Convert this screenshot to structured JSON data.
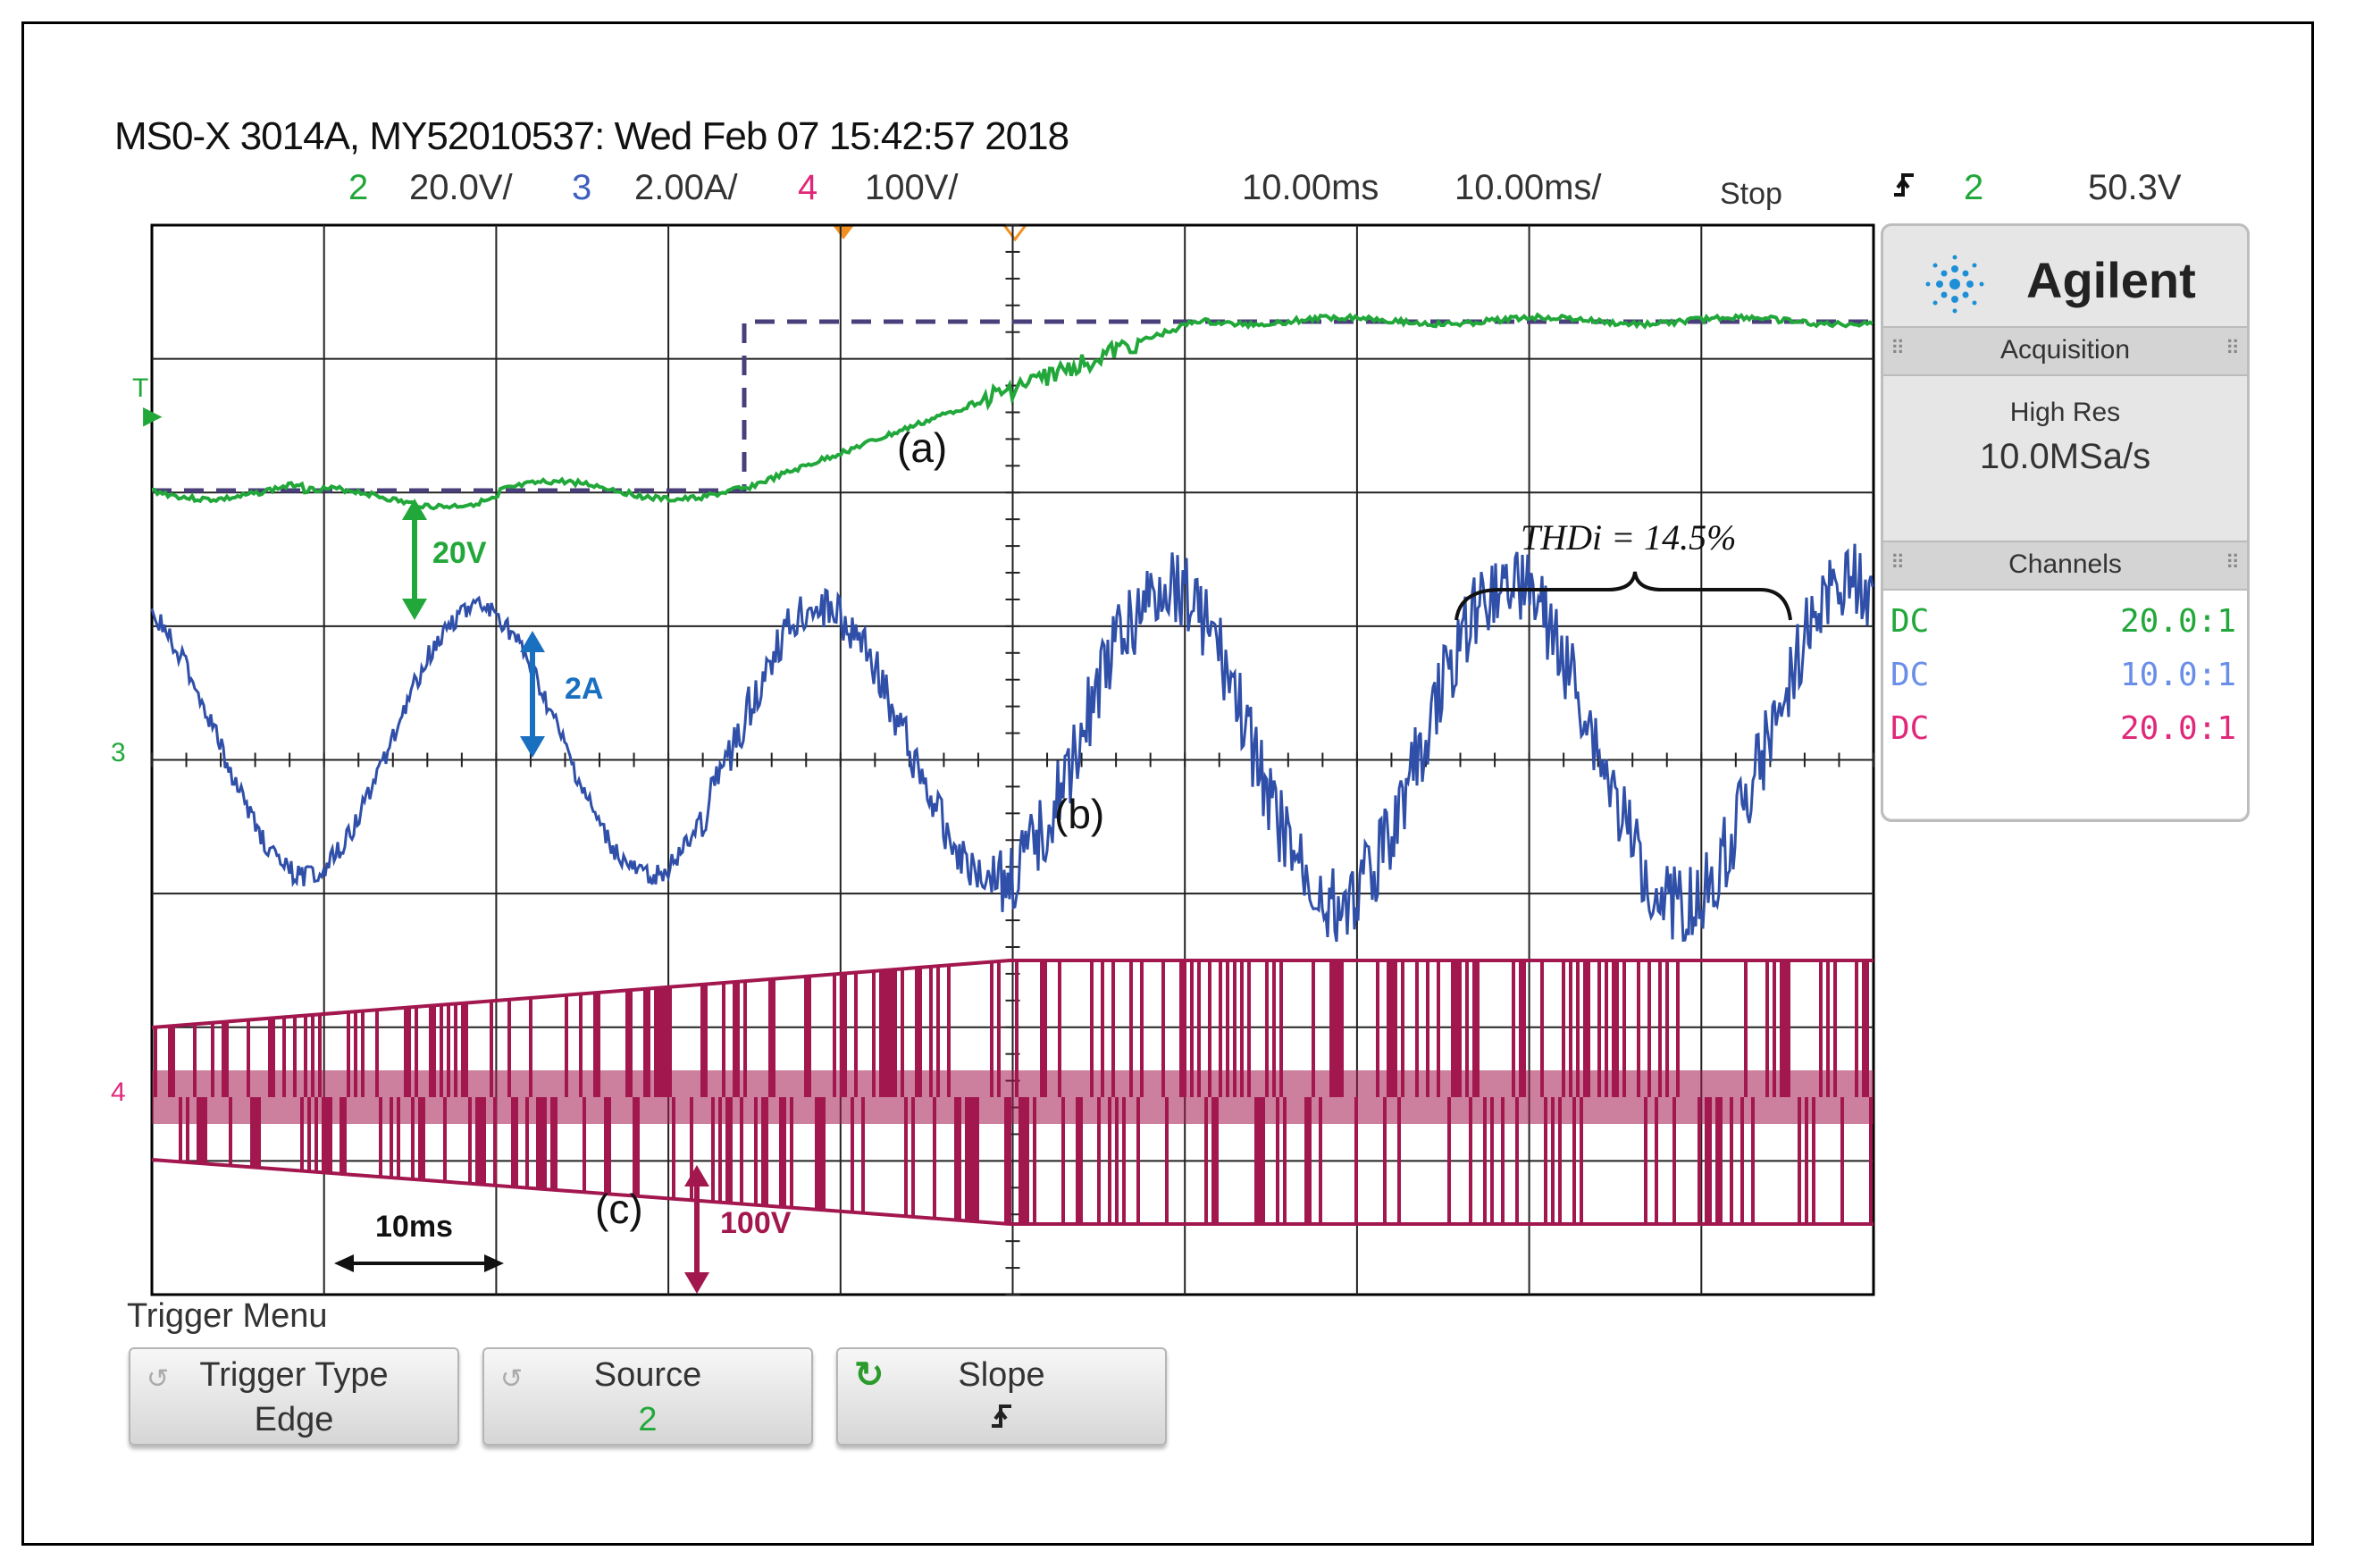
{
  "header": {
    "title": "MS0-X 3014A, MY52010537: Wed Feb 07 15:42:57 2018",
    "ch2_num": "2",
    "ch2_scale": "20.0V/",
    "ch3_num": "3",
    "ch3_scale": "2.00A/",
    "ch4_num": "4",
    "ch4_scale": "100V/",
    "delay": "10.00ms",
    "timebase": "10.00ms/",
    "run_state": "Stop",
    "trig_slope_icon": "rising-edge-icon",
    "trig_src": "2",
    "trig_level": "50.3V"
  },
  "colors": {
    "ch2": "#22a83a",
    "ch3": "#2f4fa8",
    "ch4": "#a3174f",
    "grid": "#000000",
    "accent_pink": "#e0287a",
    "blue_label": "#1a70c0"
  },
  "side_panel": {
    "brand": "Agilent",
    "acq_header": "Acquisition",
    "acq_mode": "High Res",
    "acq_rate": "10.0MSa/s",
    "chan_header": "Channels",
    "channels": [
      {
        "coupling": "DC",
        "probe": "20.0:1"
      },
      {
        "coupling": "DC",
        "probe": "10.0:1"
      },
      {
        "coupling": "DC",
        "probe": "20.0:1"
      }
    ]
  },
  "annotations": {
    "a": "(a)",
    "b": "(b)",
    "c": "(c)",
    "v20": "20V",
    "a2": "2A",
    "v100": "100V",
    "t10": "10ms",
    "thd": "THDi = 14.5%"
  },
  "markers": {
    "ch_t": "T",
    "ch3": "3",
    "ch4": "4"
  },
  "trigger_menu": {
    "title": "Trigger Menu",
    "keys": [
      {
        "label": "Trigger Type",
        "value": "Edge"
      },
      {
        "label": "Source",
        "value": "2"
      },
      {
        "label": "Slope",
        "value": "rising-edge"
      }
    ]
  }
}
